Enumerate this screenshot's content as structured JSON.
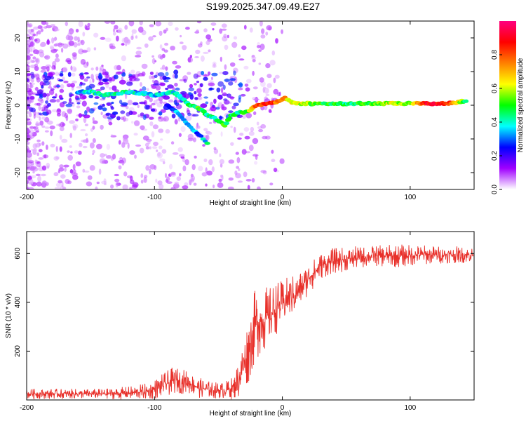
{
  "figure": {
    "title": "S199.2025.347.09.49.E27"
  },
  "chart_data": [
    {
      "type": "heatmap",
      "name": "spectrogram",
      "xlabel": "Height of straight line (km)",
      "ylabel": "Frequency (Hz)",
      "xlim": [
        -200,
        150
      ],
      "ylim": [
        -25,
        25
      ],
      "x_ticks": [
        -200,
        -100,
        0,
        100
      ],
      "x_tick_labels": [
        "-200",
        "-100",
        "0",
        "100"
      ],
      "y_ticks": [
        -20,
        -10,
        0,
        10,
        20
      ],
      "y_tick_labels": [
        "-20",
        "-10",
        "0",
        "10",
        "20"
      ],
      "colorbar": {
        "label": "Normalized spectral amplitude",
        "range": [
          0,
          1
        ],
        "ticks": [
          0,
          0.2,
          0.4,
          0.6,
          0.8
        ],
        "tick_labels": [
          "0.0",
          "0.2",
          "0.4",
          "0.6",
          "0.8"
        ],
        "colors": [
          "#ffffff",
          "#a000ff",
          "#0000ff",
          "#00ffff",
          "#00ff00",
          "#ffff00",
          "#ff8000",
          "#ff0000",
          "#ff0080"
        ]
      },
      "ridge": {
        "description": "dominant frequency trace",
        "points": [
          {
            "x": -160,
            "y": 4,
            "a": 0.3
          },
          {
            "x": -150,
            "y": 4,
            "a": 0.4
          },
          {
            "x": -140,
            "y": 3,
            "a": 0.4
          },
          {
            "x": -120,
            "y": 4,
            "a": 0.4
          },
          {
            "x": -100,
            "y": 3,
            "a": 0.35
          },
          {
            "x": -85,
            "y": 4,
            "a": 0.4
          },
          {
            "x": -78,
            "y": 2,
            "a": 0.4
          },
          {
            "x": -72,
            "y": 0,
            "a": 0.45
          },
          {
            "x": -65,
            "y": -1,
            "a": 0.5
          },
          {
            "x": -58,
            "y": -3,
            "a": 0.4
          },
          {
            "x": -52,
            "y": -4,
            "a": 0.4
          },
          {
            "x": -45,
            "y": -6,
            "a": 0.5
          },
          {
            "x": -40,
            "y": -3,
            "a": 0.5
          },
          {
            "x": -33,
            "y": -2,
            "a": 0.4
          },
          {
            "x": -28,
            "y": -2,
            "a": 0.5
          },
          {
            "x": -20,
            "y": 0,
            "a": 0.8
          },
          {
            "x": -12,
            "y": 0.5,
            "a": 0.85
          },
          {
            "x": -5,
            "y": 1,
            "a": 0.8
          },
          {
            "x": 2,
            "y": 2,
            "a": 0.7
          },
          {
            "x": 10,
            "y": 0.5,
            "a": 0.6
          },
          {
            "x": 30,
            "y": 0.5,
            "a": 0.5
          },
          {
            "x": 50,
            "y": 0.5,
            "a": 0.45
          },
          {
            "x": 70,
            "y": 0.5,
            "a": 0.5
          },
          {
            "x": 85,
            "y": 0.5,
            "a": 0.6
          },
          {
            "x": 100,
            "y": 0.5,
            "a": 0.55
          },
          {
            "x": 115,
            "y": 0.5,
            "a": 0.9
          },
          {
            "x": 130,
            "y": 0.5,
            "a": 0.85
          },
          {
            "x": 145,
            "y": 1.5,
            "a": 0.4
          }
        ]
      },
      "secondary_branch": {
        "description": "lower branch descending to about -12 Hz",
        "points": [
          {
            "x": -90,
            "y": 0,
            "a": 0.3
          },
          {
            "x": -80,
            "y": -3,
            "a": 0.35
          },
          {
            "x": -70,
            "y": -7,
            "a": 0.3
          },
          {
            "x": -62,
            "y": -10,
            "a": 0.35
          },
          {
            "x": -57,
            "y": -12,
            "a": 0.45
          }
        ]
      }
    },
    {
      "type": "line",
      "name": "snr",
      "xlabel": "Height of straight line (km)",
      "ylabel": "SNR (10 * v/v)",
      "xlim": [
        -200,
        150
      ],
      "ylim": [
        0,
        690
      ],
      "x_ticks": [
        -200,
        -100,
        0,
        100
      ],
      "x_tick_labels": [
        "-200",
        "-100",
        "0",
        "100"
      ],
      "y_ticks": [
        200,
        400,
        600
      ],
      "y_tick_labels": [
        "200",
        "400",
        "600"
      ],
      "series": [
        {
          "name": "SNR",
          "color": "#e8302a",
          "profile_x": [
            -200,
            -140,
            -120,
            -105,
            -95,
            -85,
            -75,
            -65,
            -55,
            -45,
            -38,
            -33,
            -28,
            -24,
            -20,
            -15,
            -10,
            -5,
            0,
            5,
            10,
            15,
            20,
            25,
            30,
            40,
            55,
            70,
            90,
            110,
            130,
            150
          ],
          "profile_mean": [
            25,
            25,
            28,
            35,
            55,
            80,
            75,
            50,
            40,
            40,
            50,
            100,
            180,
            260,
            320,
            330,
            340,
            380,
            390,
            420,
            430,
            460,
            500,
            520,
            550,
            570,
            580,
            590,
            590,
            595,
            595,
            595
          ],
          "profile_noise": [
            15,
            15,
            20,
            25,
            35,
            40,
            35,
            30,
            25,
            25,
            35,
            70,
            100,
            110,
            110,
            100,
            90,
            80,
            70,
            65,
            60,
            55,
            50,
            45,
            40,
            38,
            35,
            30,
            35,
            30,
            25,
            25
          ]
        }
      ]
    }
  ]
}
